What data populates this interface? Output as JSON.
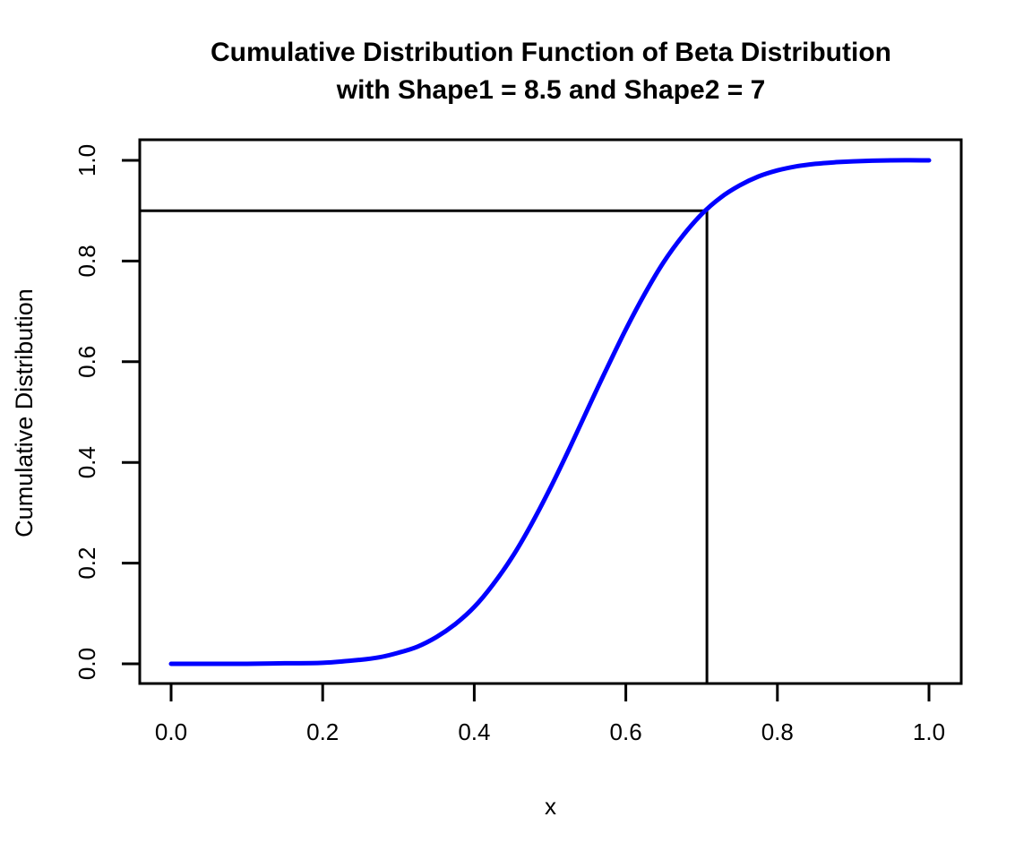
{
  "chart_data": {
    "type": "line",
    "title": "Cumulative Distribution Function of Beta Distribution",
    "subtitle": "with Shape1 = 8.5 and Shape2 = 7",
    "xlabel": "x",
    "ylabel": "Cumulative Distribution",
    "xlim": [
      0,
      1
    ],
    "ylim": [
      0,
      1
    ],
    "grid": false,
    "legend": "none",
    "xticks": [
      0.0,
      0.2,
      0.4,
      0.6,
      0.8,
      1.0
    ],
    "yticks": [
      0.0,
      0.2,
      0.4,
      0.6,
      0.8,
      1.0
    ],
    "xtick_labels": [
      "0.0",
      "0.2",
      "0.4",
      "0.6",
      "0.8",
      "1.0"
    ],
    "ytick_labels": [
      "0.0",
      "0.2",
      "0.4",
      "0.6",
      "0.8",
      "1.0"
    ],
    "colors": {
      "curve": "#0000FF",
      "axis": "#000000",
      "reference": "#000000",
      "text": "#000000",
      "background": "#FFFFFF"
    },
    "distribution": {
      "family": "Beta",
      "shape1": 8.5,
      "shape2": 7
    },
    "reference_lines": [
      {
        "type": "horizontal",
        "y": 0.9,
        "x_start": "box-left",
        "x_end": 0.707
      },
      {
        "type": "vertical",
        "x": 0.707,
        "y_start": 0.9,
        "y_end": "box-bottom"
      }
    ],
    "series": [
      {
        "name": "Beta(8.5, 7) CDF",
        "color": "#0000FF",
        "points": [
          [
            0.0,
            0.0
          ],
          [
            0.05,
            0.0
          ],
          [
            0.1,
            0.0
          ],
          [
            0.15,
            0.001
          ],
          [
            0.2,
            0.002
          ],
          [
            0.25,
            0.008
          ],
          [
            0.275,
            0.013
          ],
          [
            0.3,
            0.022
          ],
          [
            0.325,
            0.034
          ],
          [
            0.35,
            0.053
          ],
          [
            0.375,
            0.079
          ],
          [
            0.4,
            0.113
          ],
          [
            0.425,
            0.158
          ],
          [
            0.45,
            0.212
          ],
          [
            0.475,
            0.276
          ],
          [
            0.5,
            0.348
          ],
          [
            0.525,
            0.426
          ],
          [
            0.55,
            0.507
          ],
          [
            0.575,
            0.587
          ],
          [
            0.6,
            0.664
          ],
          [
            0.625,
            0.735
          ],
          [
            0.65,
            0.798
          ],
          [
            0.675,
            0.85
          ],
          [
            0.7,
            0.893
          ],
          [
            0.725,
            0.926
          ],
          [
            0.75,
            0.95
          ],
          [
            0.775,
            0.968
          ],
          [
            0.8,
            0.98
          ],
          [
            0.825,
            0.988
          ],
          [
            0.85,
            0.993
          ],
          [
            0.875,
            0.996
          ],
          [
            0.9,
            0.998
          ],
          [
            0.95,
            1.0
          ],
          [
            1.0,
            1.0
          ]
        ]
      }
    ]
  }
}
